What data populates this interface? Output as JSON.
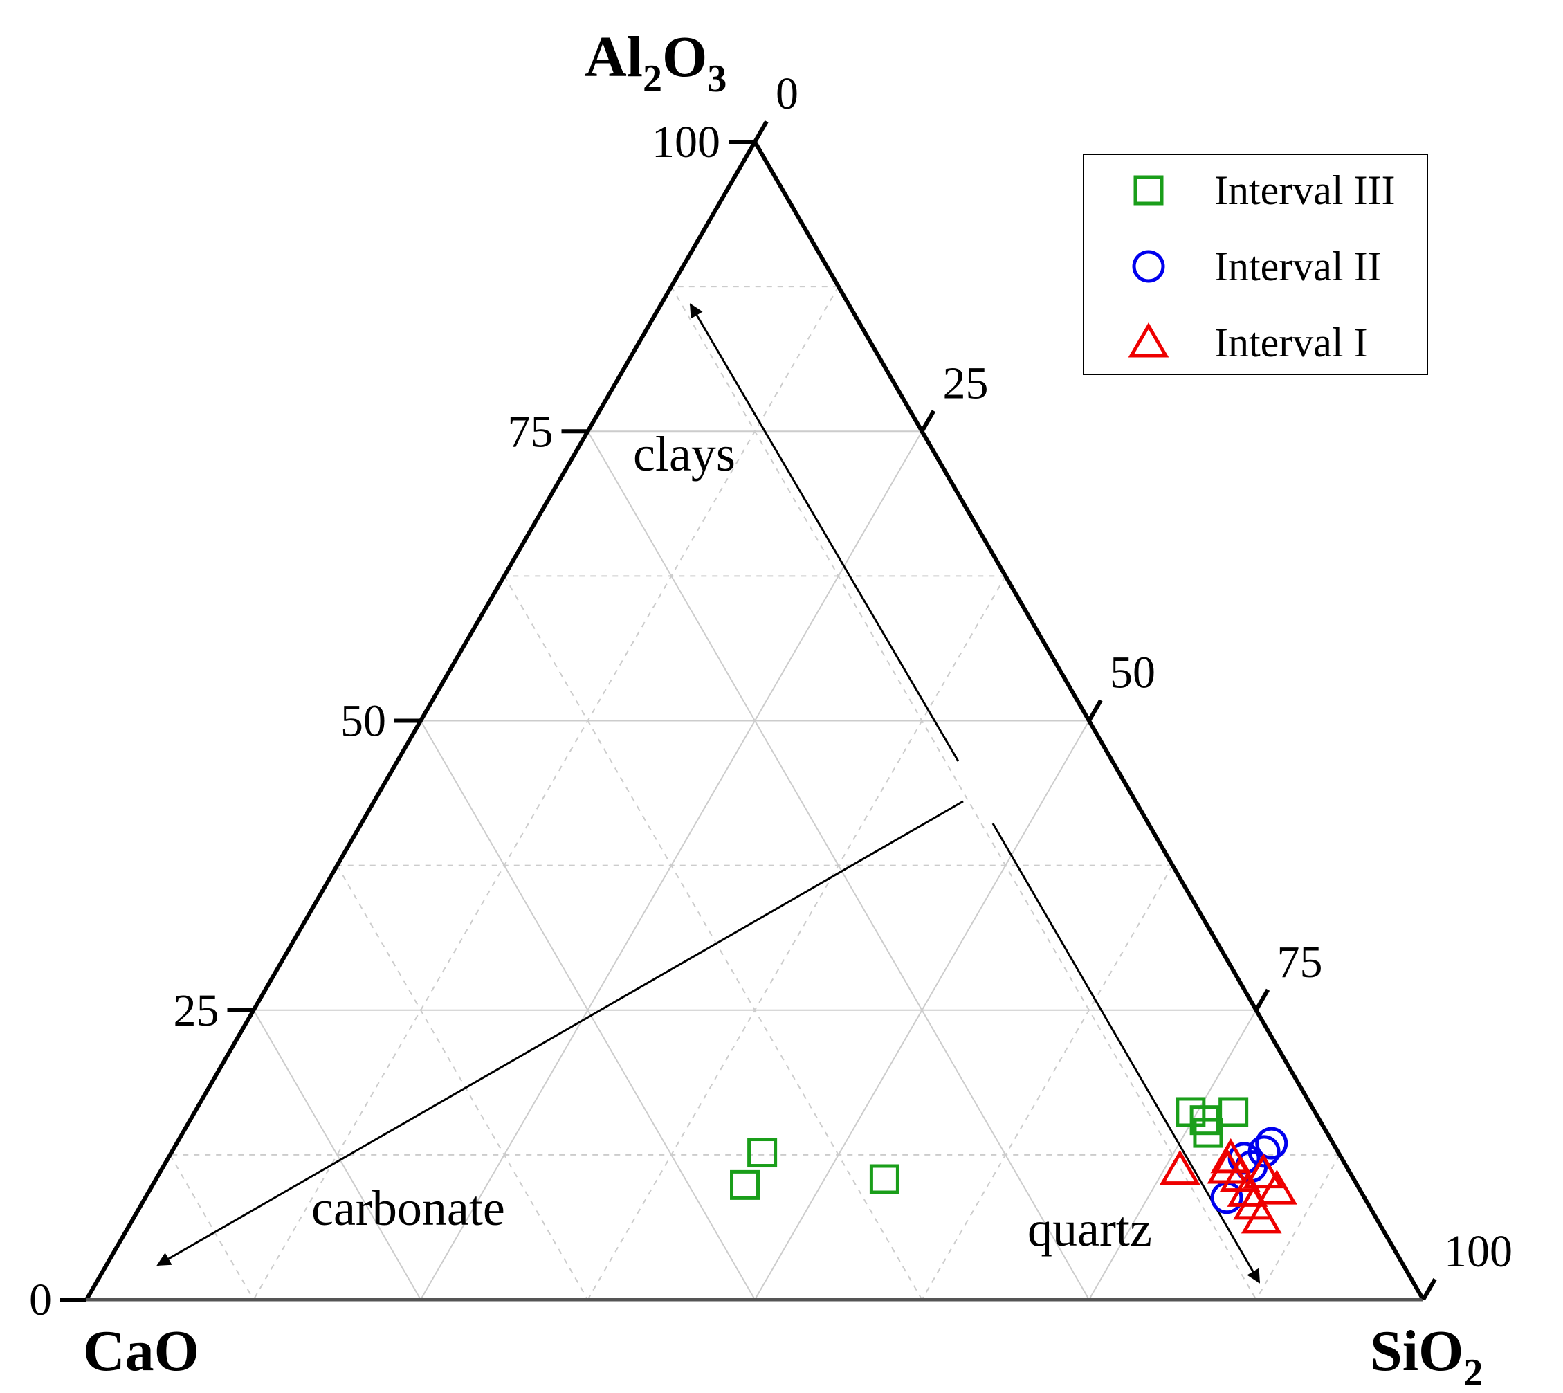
{
  "chart_data": {
    "type": "scatter",
    "subtype": "ternary",
    "grid": true,
    "legend_position": "top-right",
    "axes": {
      "top": {
        "main": "Al",
        "sub1": "2",
        "mid": "O",
        "sub2": "3"
      },
      "left": {
        "main": "CaO"
      },
      "right": {
        "main": "SiO",
        "sub": "2"
      }
    },
    "ticks": {
      "left": [
        "0",
        "25",
        "50",
        "75",
        "100"
      ],
      "right": [
        "0",
        "25",
        "50",
        "75",
        "100"
      ]
    },
    "annotations": [
      {
        "id": "clays",
        "text": "clays"
      },
      {
        "id": "carbonate",
        "text": "carbonate"
      },
      {
        "id": "quartz",
        "text": "quartz"
      }
    ],
    "series": [
      {
        "name": "Interval III",
        "marker": "square",
        "color": "#1a9e1a",
        "points": [
          {
            "Al2O3": 16.2,
            "SiO2": 74.5,
            "CaO": 9.3
          },
          {
            "Al2O3": 15.5,
            "SiO2": 75.9,
            "CaO": 8.6
          },
          {
            "Al2O3": 14.4,
            "SiO2": 76.7,
            "CaO": 8.9
          },
          {
            "Al2O3": 16.2,
            "SiO2": 77.7,
            "CaO": 6.1
          },
          {
            "Al2O3": 12.7,
            "SiO2": 44.2,
            "CaO": 43.1
          },
          {
            "Al2O3": 9.9,
            "SiO2": 44.3,
            "CaO": 45.8
          },
          {
            "Al2O3": 10.4,
            "SiO2": 54.5,
            "CaO": 35.1
          }
        ]
      },
      {
        "name": "Interval II",
        "marker": "circle",
        "color": "#0000ee",
        "points": [
          {
            "Al2O3": 13.5,
            "SiO2": 81.9,
            "CaO": 4.6
          },
          {
            "Al2O3": 12.8,
            "SiO2": 81.7,
            "CaO": 5.5
          },
          {
            "Al2O3": 12.2,
            "SiO2": 80.5,
            "CaO": 7.3
          },
          {
            "Al2O3": 11.5,
            "SiO2": 81.4,
            "CaO": 7.1
          },
          {
            "Al2O3": 8.8,
            "SiO2": 80.9,
            "CaO": 10.3
          }
        ]
      },
      {
        "name": "Interval I",
        "marker": "triangle",
        "color": "#ee0000",
        "points": [
          {
            "Al2O3": 11.2,
            "SiO2": 76.2,
            "CaO": 12.6
          },
          {
            "Al2O3": 12.2,
            "SiO2": 79.5,
            "CaO": 8.3
          },
          {
            "Al2O3": 11.3,
            "SiO2": 79.7,
            "CaO": 9.0
          },
          {
            "Al2O3": 10.6,
            "SiO2": 81.0,
            "CaO": 8.4
          },
          {
            "Al2O3": 10.9,
            "SiO2": 82.6,
            "CaO": 6.5
          },
          {
            "Al2O3": 9.3,
            "SiO2": 82.2,
            "CaO": 8.5
          },
          {
            "Al2O3": 8.2,
            "SiO2": 83.2,
            "CaO": 8.6
          },
          {
            "Al2O3": 7.0,
            "SiO2": 84.4,
            "CaO": 8.6
          },
          {
            "Al2O3": 9.5,
            "SiO2": 84.3,
            "CaO": 6.2
          }
        ]
      }
    ]
  }
}
